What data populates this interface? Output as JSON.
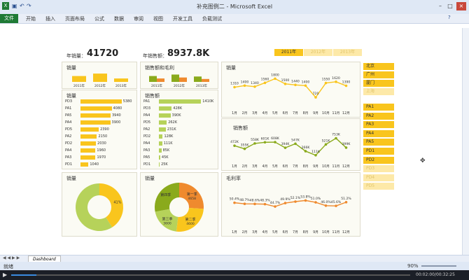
{
  "window": {
    "title": "补充图例二 - Microsoft Excel"
  },
  "ribbon": {
    "file": "文件",
    "tabs": [
      "开始",
      "插入",
      "页面布局",
      "公式",
      "数据",
      "审阅",
      "视图",
      "开发工具",
      "负载测试"
    ]
  },
  "kpis": {
    "qty_label": "年销量：",
    "qty_value": "41720",
    "amt_label": "年销售额：",
    "amt_value": "8937.8K"
  },
  "years": {
    "items": [
      "2011年",
      "2012年",
      "2013年"
    ],
    "selected": 0
  },
  "regions": {
    "items": [
      "北京",
      "广州",
      "厦门",
      "上海"
    ],
    "active": [
      true,
      true,
      true,
      false
    ]
  },
  "products": {
    "items": [
      "PA1",
      "PA2",
      "PA3",
      "PA4",
      "PA5",
      "PD1",
      "PD2",
      "PD3",
      "PD4",
      "PD5"
    ],
    "active": [
      true,
      true,
      true,
      true,
      true,
      true,
      true,
      false,
      false,
      false
    ]
  },
  "colors": {
    "gold": "#f9c51d",
    "green": "#8aaa1c",
    "orange": "#ef8a2e",
    "pale": "#fde9a8",
    "lime": "#b6d25a"
  },
  "panels": {
    "qty_year_title": "销量",
    "amt_year_title": "销售额和毛利",
    "qty_bar_title": "销量",
    "amt_bar_title": "销售额",
    "qty_donut_title": "销量",
    "amt_donut_title": "销量",
    "line_qty_title": "销量",
    "line_amt_title": "销售额",
    "line_margin_title": "毛利率"
  },
  "chart_data": [
    {
      "type": "bar",
      "title": "销量",
      "categories": [
        "2011年",
        "2012年",
        "2013年"
      ],
      "values": [
        0.6,
        0.85,
        0.35
      ]
    },
    {
      "type": "bar",
      "title": "销售额和毛利",
      "categories": [
        "2011年",
        "2012年",
        "2013年"
      ],
      "series": [
        {
          "values": [
            0.6,
            0.75,
            0.55
          ]
        },
        {
          "values": [
            0.35,
            0.45,
            0.3
          ]
        }
      ]
    },
    {
      "type": "bar",
      "title": "销量",
      "categories": [
        "PD3",
        "PA1",
        "PA5",
        "PA4",
        "PD5",
        "PA2",
        "PD2",
        "PA4",
        "PA3",
        "PD1"
      ],
      "values": [
        5380,
        4080,
        3940,
        3900,
        2390,
        2150,
        2030,
        1960,
        1970,
        1040
      ],
      "xlim": [
        0,
        5500
      ]
    },
    {
      "type": "bar",
      "title": "销售额",
      "categories": [
        "PA1",
        "PD3",
        "PA4",
        "PD5",
        "PA2",
        "PD2",
        "PA4",
        "PA3",
        "PA5",
        "PD1"
      ],
      "labels": [
        "1410K",
        "428K",
        "390K",
        "262K",
        "231K",
        "128K",
        "111K",
        "85K",
        "45K",
        "25K"
      ],
      "values": [
        1410,
        428,
        390,
        262,
        231,
        128,
        111,
        85,
        45,
        25
      ],
      "xlim": [
        0,
        1450
      ]
    },
    {
      "type": "pie",
      "title": "销量",
      "labels": [
        "41%",
        ""
      ],
      "values": [
        41,
        59
      ]
    },
    {
      "type": "pie",
      "title": "销量",
      "labels": [
        "第一季",
        "第二季",
        "第三季",
        "第四季"
      ],
      "values": [
        4658,
        4600,
        3600,
        5000
      ],
      "value_labels": [
        "4658",
        "4600",
        "3600",
        ""
      ]
    },
    {
      "type": "line",
      "title": "销量",
      "x": [
        "1月",
        "2月",
        "3月",
        "4月",
        "5月",
        "6月",
        "7月",
        "8月",
        "9月",
        "10月",
        "11月",
        "12月"
      ],
      "values": [
        1310,
        1400,
        1340,
        1560,
        1800,
        1500,
        1440,
        1400,
        720,
        1550,
        1620,
        1390
      ],
      "ylim": [
        400,
        2100
      ]
    },
    {
      "type": "line",
      "title": "销售额",
      "x": [
        "1月",
        "2月",
        "3月",
        "4月",
        "5月",
        "6月",
        "7月",
        "8月",
        "9月",
        "10月",
        "11月",
        "12月"
      ],
      "values": [
        472,
        355,
        558,
        601,
        608,
        394,
        547,
        266,
        111,
        521,
        753,
        399
      ],
      "labels": [
        "472K",
        "355K",
        "558K",
        "601K",
        "608K",
        "394K",
        "547K",
        "266K",
        "111K",
        "521K",
        "753K",
        "399K"
      ],
      "ylim": [
        0,
        900
      ]
    },
    {
      "type": "line",
      "title": "毛利率",
      "x": [
        "1月",
        "2月",
        "3月",
        "4月",
        "5月",
        "6月",
        "7月",
        "8月",
        "9月",
        "10月",
        "11月",
        "12月"
      ],
      "values": [
        50.4,
        48.7,
        48.6,
        48.3,
        44.7,
        49.9,
        52.1,
        53.8,
        51.0,
        46.0,
        45.6,
        51.2
      ],
      "labels": [
        "50.4%",
        "48.7%",
        "48.6%",
        "48.3%",
        "44.7%",
        "49.9%",
        "52.1%",
        "53.8%",
        "51.0%",
        "46.0%",
        "45.6%",
        "51.2%"
      ],
      "ylim": [
        30,
        70
      ]
    }
  ],
  "sheet": {
    "name": "Dashboard"
  },
  "status": {
    "ready": "就绪",
    "zoom": "90%",
    "time": "00:02:00/00:32:25"
  }
}
